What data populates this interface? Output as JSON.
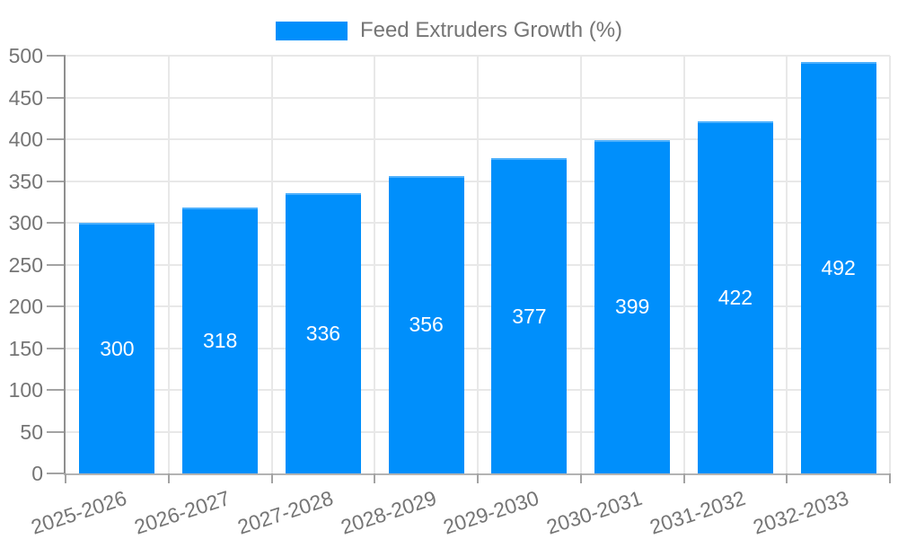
{
  "chart_data": {
    "type": "bar",
    "title": "Feed Extruders Growth (%)",
    "legend": {
      "label": "Feed Extruders Growth (%)",
      "position": "top"
    },
    "categories": [
      "2025-2026",
      "2026-2027",
      "2027-2028",
      "2028-2029",
      "2029-2030",
      "2030-2031",
      "2031-2032",
      "2032-2033"
    ],
    "series": [
      {
        "name": "Feed Extruders Growth (%)",
        "values": [
          300,
          318,
          336,
          356,
          377,
          399,
          422,
          492
        ]
      }
    ],
    "y_ticks": [
      0,
      50,
      100,
      150,
      200,
      250,
      300,
      350,
      400,
      450,
      500
    ],
    "ylim": [
      0,
      500
    ],
    "xlabel": "",
    "ylabel": "",
    "grid": true,
    "bar_value_labels": true,
    "colors": {
      "bar": "#008FFB",
      "axis_text": "#757575",
      "value_text": "#ffffff",
      "gridline": "#e8e8e8",
      "tick": "#a3a3a3",
      "y_axis_line": "#8f8f8f",
      "x_axis_line": "#b3b3b3"
    }
  }
}
